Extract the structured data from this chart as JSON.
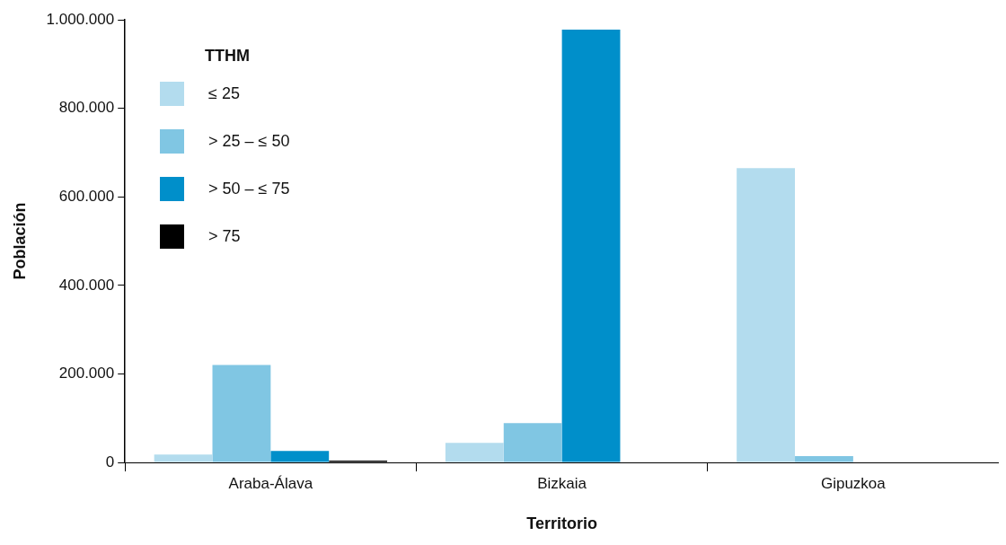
{
  "chart_data": {
    "type": "bar",
    "xlabel": "Territorio",
    "ylabel": "Población",
    "legend_title": "TTHM",
    "categories": [
      "Araba-Álava",
      "Bizkaia",
      "Gipuzkoa"
    ],
    "series": [
      {
        "name": "≤ 25",
        "color": "#b3dcee",
        "values": [
          18000,
          44000,
          665000
        ]
      },
      {
        "name": "> 25 – ≤ 50",
        "color": "#80c6e3",
        "values": [
          220000,
          89000,
          14000
        ]
      },
      {
        "name": "> 50 – ≤ 75",
        "color": "#008fca",
        "values": [
          26000,
          978000,
          0
        ]
      },
      {
        "name": "> 75",
        "color": "#000000",
        "values": [
          4000,
          0,
          0
        ]
      }
    ],
    "ylim": [
      0,
      1000000
    ],
    "yticks": [
      {
        "value": 0,
        "label": "0"
      },
      {
        "value": 200000,
        "label": "200.000"
      },
      {
        "value": 400000,
        "label": "400.000"
      },
      {
        "value": 600000,
        "label": "600.000"
      },
      {
        "value": 800000,
        "label": "800.000"
      },
      {
        "value": 1000000,
        "label": "1.000.000"
      }
    ],
    "grid": false,
    "legend": "top left"
  }
}
